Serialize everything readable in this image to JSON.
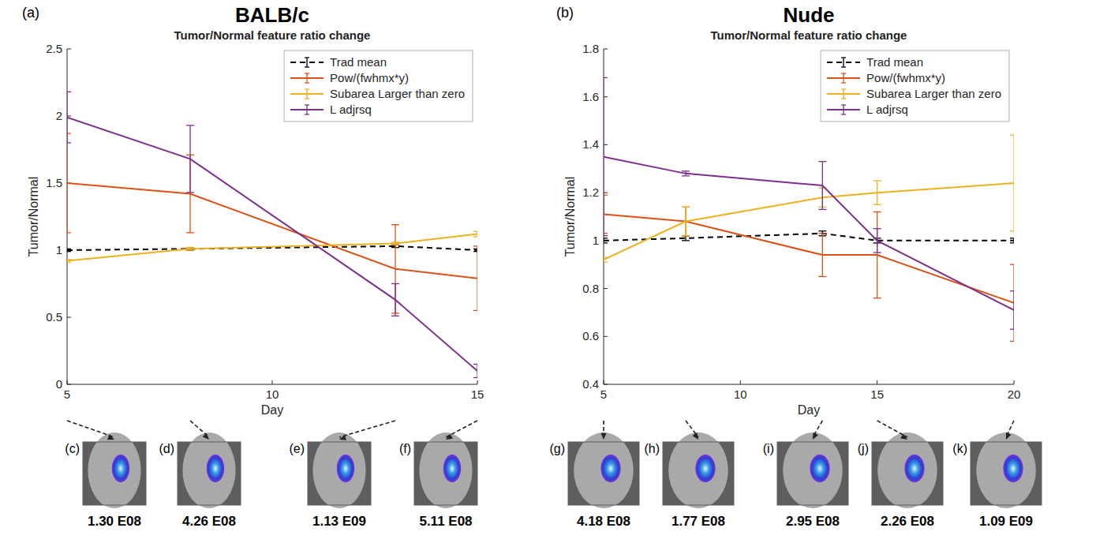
{
  "chart_data": [
    {
      "type": "line",
      "panel_label": "(a)",
      "title": "BALB/c",
      "subtitle": "Tumor/Normal feature ratio change",
      "x_label": "Day",
      "y_label": "Tumor/Normal",
      "x": [
        5,
        8,
        13,
        15
      ],
      "xlim": [
        5,
        15
      ],
      "xticks": [
        5,
        10,
        15
      ],
      "ylim": [
        0,
        2.5
      ],
      "yticks": [
        0,
        0.5,
        1,
        1.5,
        2,
        2.5
      ],
      "legend": "upper right",
      "grid": false,
      "series": [
        {
          "name": "Trad mean",
          "color": "#000000",
          "line_style": "dashed",
          "values": [
            1.0,
            1.01,
            1.03,
            1.0
          ],
          "errors": [
            0.01,
            0.01,
            0.01,
            0.01
          ]
        },
        {
          "name": "Pow/(fwhmx*y)",
          "color": "#d95319",
          "line_style": "solid",
          "values": [
            1.5,
            1.42,
            0.86,
            0.79
          ],
          "errors": [
            0.37,
            0.29,
            0.33,
            0.24
          ]
        },
        {
          "name": "Subarea Larger than zero",
          "color": "#edb120",
          "line_style": "solid",
          "values": [
            0.92,
            1.01,
            1.05,
            1.12
          ],
          "errors": [
            0.01,
            0.01,
            0.01,
            0.02
          ]
        },
        {
          "name": "L adjrsq",
          "color": "#7e2f8e",
          "line_style": "solid",
          "values": [
            1.99,
            1.68,
            0.63,
            0.1
          ],
          "errors": [
            0.19,
            0.25,
            0.12,
            0.05
          ]
        }
      ],
      "images": [
        {
          "label": "(c)",
          "x": 5,
          "caption": "1.30 E08"
        },
        {
          "label": "(d)",
          "x": 8,
          "caption": "4.26 E08"
        },
        {
          "label": "(e)",
          "x": 13,
          "caption": "1.13 E09"
        },
        {
          "label": "(f)",
          "x": 15,
          "caption": "5.11 E08"
        }
      ]
    },
    {
      "type": "line",
      "panel_label": "(b)",
      "title": "Nude",
      "subtitle": "Tumor/Normal feature ratio change",
      "x_label": "Day",
      "y_label": "Tumor/Normal",
      "x": [
        5,
        8,
        13,
        15,
        20
      ],
      "xlim": [
        5,
        20
      ],
      "xticks": [
        5,
        10,
        15,
        20
      ],
      "ylim": [
        0.4,
        1.8
      ],
      "yticks": [
        0.4,
        0.6,
        0.8,
        1,
        1.2,
        1.4,
        1.6,
        1.8
      ],
      "legend": "upper right",
      "grid": false,
      "series": [
        {
          "name": "Trad mean",
          "color": "#000000",
          "line_style": "dashed",
          "values": [
            1.0,
            1.01,
            1.03,
            1.0,
            1.0
          ],
          "errors": [
            0.01,
            0.01,
            0.01,
            0.01,
            0.01
          ]
        },
        {
          "name": "Pow/(fwhmx*y)",
          "color": "#d95319",
          "line_style": "solid",
          "values": [
            1.11,
            1.08,
            0.94,
            0.94,
            0.74
          ],
          "errors": [
            0.08,
            0.06,
            0.09,
            0.18,
            0.16
          ]
        },
        {
          "name": "Subarea Larger than zero",
          "color": "#edb120",
          "line_style": "solid",
          "values": [
            0.92,
            1.08,
            1.18,
            1.2,
            1.24
          ],
          "errors": [
            0.01,
            0.06,
            0.04,
            0.05,
            0.2
          ]
        },
        {
          "name": "L adjrsq",
          "color": "#7e2f8e",
          "line_style": "solid",
          "values": [
            1.35,
            1.28,
            1.23,
            1.0,
            0.71
          ],
          "errors": [
            0.33,
            0.01,
            0.1,
            0.05,
            0.08
          ]
        }
      ],
      "images": [
        {
          "label": "(g)",
          "x": 5,
          "caption": "4.18 E08"
        },
        {
          "label": "(h)",
          "x": 8,
          "caption": "1.77 E08"
        },
        {
          "label": "(i)",
          "x": 13,
          "caption": "2.95 E08"
        },
        {
          "label": "(j)",
          "x": 15,
          "caption": "2.26 E08"
        },
        {
          "label": "(k)",
          "x": 20,
          "caption": "1.09 E09"
        }
      ]
    }
  ]
}
